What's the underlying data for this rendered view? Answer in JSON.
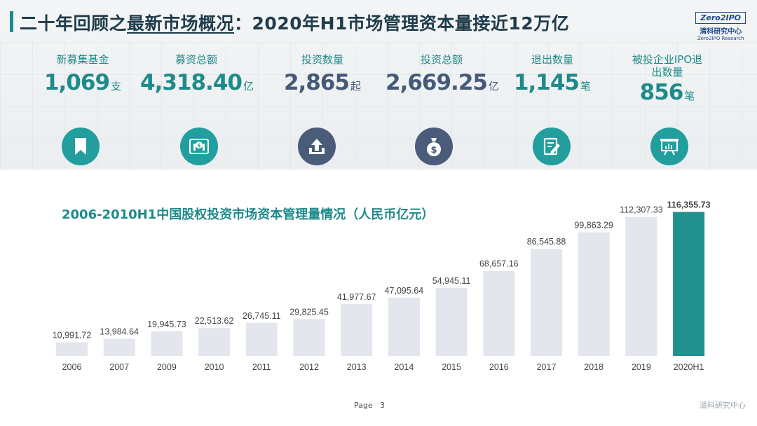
{
  "header": {
    "title_part1": "二十年回顾之",
    "title_underlined": "最新市场概况",
    "title_part2": "：2020年H1市场管理资本量接近12万亿",
    "logo_text": "Zero2IPO",
    "logo_cn": "清科研究中心",
    "logo_en": "Zero2IPO Research"
  },
  "stats": [
    {
      "label": "新募集基金",
      "value": "1,069",
      "unit": "支",
      "color": "teal",
      "icon": "bookmark-icon"
    },
    {
      "label": "募资总额",
      "value": "4,318.40",
      "unit": "亿",
      "color": "teal",
      "icon": "money-bag-icon"
    },
    {
      "label": "投资数量",
      "value": "2,865",
      "unit": "起",
      "color": "slate",
      "icon": "upload-arrow-icon"
    },
    {
      "label": "投资总额",
      "value": "2,669.25",
      "unit": "亿",
      "color": "slate",
      "icon": "dollar-bag-icon"
    },
    {
      "label": "退出数量",
      "value": "1,145",
      "unit": "笔",
      "color": "teal",
      "icon": "edit-document-icon"
    },
    {
      "label": "被投企业IPO退出数量",
      "value": "856",
      "unit": "笔",
      "color": "teal",
      "icon": "presentation-board-icon"
    }
  ],
  "colors": {
    "teal": "#1f8a8a",
    "slate": "#465a78",
    "bar_default": "#e3e6ec",
    "bar_highlight": "#21908f"
  },
  "chart_data": {
    "type": "bar",
    "title": "2006-2010H1中国股权投资市场资本管理量情况（人民币亿元）",
    "categories": [
      "2006",
      "2007",
      "2009",
      "2010",
      "2011",
      "2012",
      "2013",
      "2014",
      "2015",
      "2016",
      "2017",
      "2018",
      "2019",
      "2020H1"
    ],
    "values": [
      10991.72,
      13984.64,
      19945.73,
      22513.62,
      26745.11,
      29825.45,
      41977.67,
      47095.64,
      54945.11,
      68657.16,
      86545.88,
      99863.29,
      112307.33,
      116355.73
    ],
    "value_labels": [
      "10,991.72",
      "13,984.64",
      "19,945.73",
      "22,513.62",
      "26,745.11",
      "29,825.45",
      "41,977.67",
      "47,095.64",
      "54,945.11",
      "68,657.16",
      "86,545.88",
      "99,863.29",
      "112,307.33",
      "116,355.73"
    ],
    "highlight_index": 13,
    "ylim": [
      0,
      120000
    ],
    "xlabel": "",
    "ylabel": "",
    "grid": false
  },
  "footer": {
    "page_label": "Page",
    "page_number": "3",
    "brand": "清科研究中心"
  }
}
